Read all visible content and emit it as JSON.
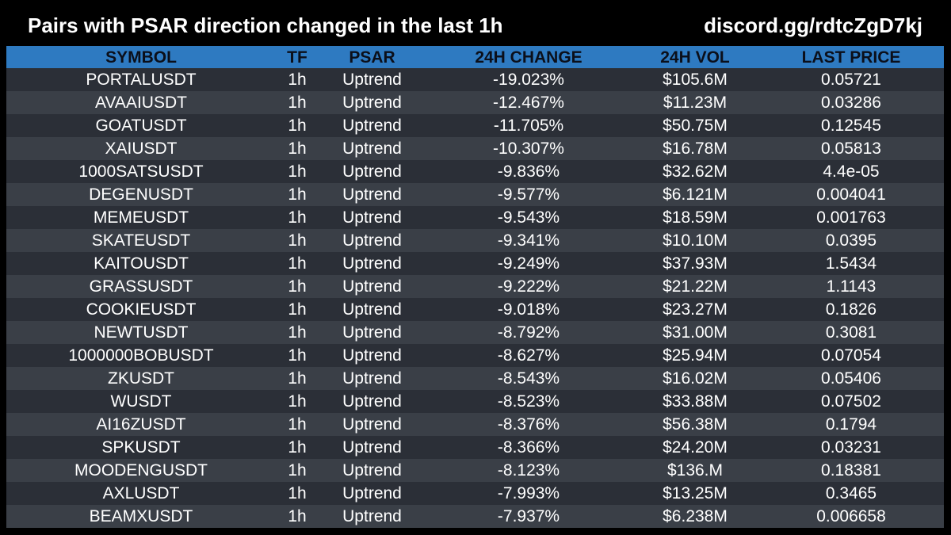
{
  "header": {
    "title": "Pairs with PSAR direction changed in the last 1h",
    "invite": "discord.gg/rdtcZgD7kj"
  },
  "table": {
    "columns": [
      "SYMBOL",
      "TF",
      "PSAR",
      "24H CHANGE",
      "24H VOL",
      "LAST PRICE"
    ],
    "rows": [
      [
        "PORTALUSDT",
        "1h",
        "Uptrend",
        "-19.023%",
        "$105.6M",
        "0.05721"
      ],
      [
        "AVAAIUSDT",
        "1h",
        "Uptrend",
        "-12.467%",
        "$11.23M",
        "0.03286"
      ],
      [
        "GOATUSDT",
        "1h",
        "Uptrend",
        "-11.705%",
        "$50.75M",
        "0.12545"
      ],
      [
        "XAIUSDT",
        "1h",
        "Uptrend",
        "-10.307%",
        "$16.78M",
        "0.05813"
      ],
      [
        "1000SATSUSDT",
        "1h",
        "Uptrend",
        "-9.836%",
        "$32.62M",
        "4.4e-05"
      ],
      [
        "DEGENUSDT",
        "1h",
        "Uptrend",
        "-9.577%",
        "$6.121M",
        "0.004041"
      ],
      [
        "MEMEUSDT",
        "1h",
        "Uptrend",
        "-9.543%",
        "$18.59M",
        "0.001763"
      ],
      [
        "SKATEUSDT",
        "1h",
        "Uptrend",
        "-9.341%",
        "$10.10M",
        "0.0395"
      ],
      [
        "KAITOUSDT",
        "1h",
        "Uptrend",
        "-9.249%",
        "$37.93M",
        "1.5434"
      ],
      [
        "GRASSUSDT",
        "1h",
        "Uptrend",
        "-9.222%",
        "$21.22M",
        "1.1143"
      ],
      [
        "COOKIEUSDT",
        "1h",
        "Uptrend",
        "-9.018%",
        "$23.27M",
        "0.1826"
      ],
      [
        "NEWTUSDT",
        "1h",
        "Uptrend",
        "-8.792%",
        "$31.00M",
        "0.3081"
      ],
      [
        "1000000BOBUSDT",
        "1h",
        "Uptrend",
        "-8.627%",
        "$25.94M",
        "0.07054"
      ],
      [
        "ZKUSDT",
        "1h",
        "Uptrend",
        "-8.543%",
        "$16.02M",
        "0.05406"
      ],
      [
        "WUSDT",
        "1h",
        "Uptrend",
        "-8.523%",
        "$33.88M",
        "0.07502"
      ],
      [
        "AI16ZUSDT",
        "1h",
        "Uptrend",
        "-8.376%",
        "$56.38M",
        "0.1794"
      ],
      [
        "SPKUSDT",
        "1h",
        "Uptrend",
        "-8.366%",
        "$24.20M",
        "0.03231"
      ],
      [
        "MOODENGUSDT",
        "1h",
        "Uptrend",
        "-8.123%",
        "$136.M",
        "0.18381"
      ],
      [
        "AXLUSDT",
        "1h",
        "Uptrend",
        "-7.993%",
        "$13.25M",
        "0.3465"
      ],
      [
        "BEAMXUSDT",
        "1h",
        "Uptrend",
        "-7.937%",
        "$6.238M",
        "0.006658"
      ]
    ]
  },
  "colors": {
    "header_bg": "#2e7ac1",
    "row_dark": "#2b2f37",
    "row_light": "#3a3f47",
    "background": "#000000"
  }
}
